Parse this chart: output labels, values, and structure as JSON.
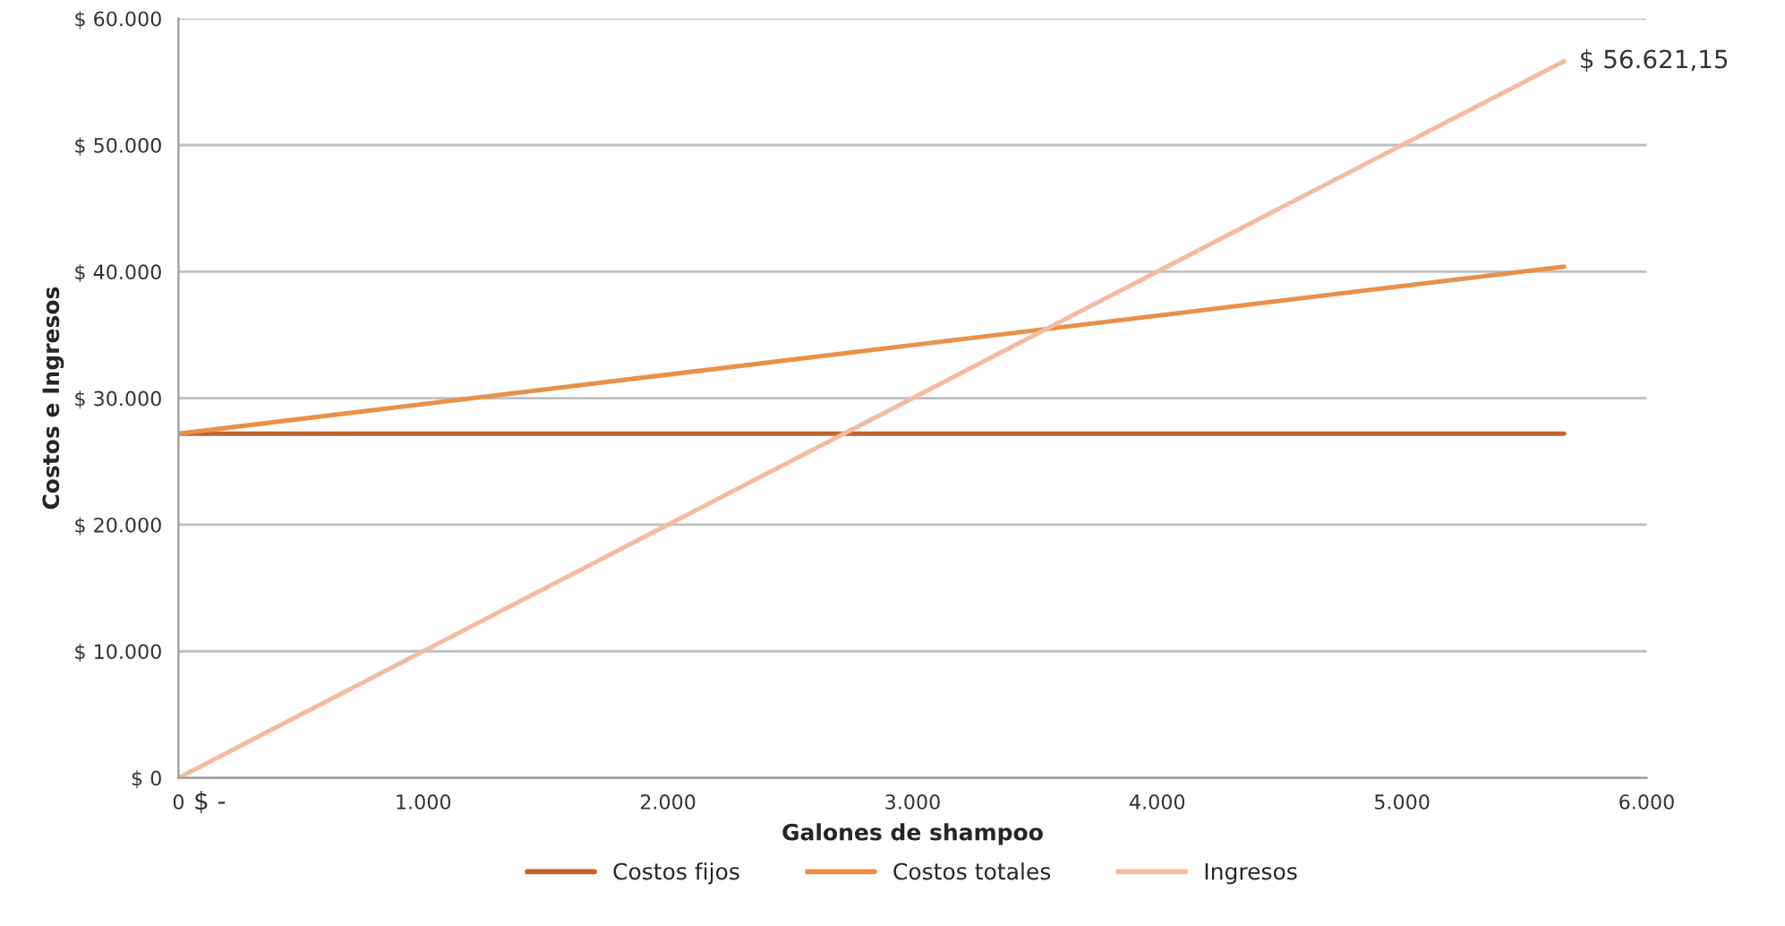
{
  "chart_data": {
    "type": "line",
    "xlabel": "Galones de shampoo",
    "ylabel": "Costos e Ingresos",
    "x": [
      0,
      5662
    ],
    "series": [
      {
        "name": "Costos fijos",
        "color": "#c0642c",
        "values": [
          27200,
          27200
        ]
      },
      {
        "name": "Costos totales",
        "color": "#e8914a",
        "values": [
          27200,
          40400
        ]
      },
      {
        "name": "Ingresos",
        "color": "#f4bba3",
        "values": [
          0,
          56621.15
        ],
        "value_labels": [
          "$ -",
          "$ 56.621,15"
        ]
      }
    ],
    "xlim": [
      0,
      6000
    ],
    "xticks": [
      0,
      {
        "value": 1000,
        "label": "1.000"
      },
      {
        "value": 2000,
        "label": "2.000"
      },
      {
        "value": 3000,
        "label": "3.000"
      },
      {
        "value": 4000,
        "label": "4.000"
      },
      {
        "value": 5000,
        "label": "5.000"
      },
      {
        "value": 6000,
        "label": "6.000"
      }
    ],
    "ylim": [
      0,
      60000
    ],
    "yticks": [
      {
        "value": 0,
        "label": "$ 0"
      },
      {
        "value": 10000,
        "label": "$ 10.000"
      },
      {
        "value": 20000,
        "label": "$ 20.000"
      },
      {
        "value": 30000,
        "label": "$ 30.000"
      },
      {
        "value": 40000,
        "label": "$ 40.000"
      },
      {
        "value": 50000,
        "label": "$ 50.000"
      },
      {
        "value": 60000,
        "label": "$ 60.000"
      }
    ],
    "grid": "y",
    "legend": "bottom",
    "marker": "none",
    "line_style": "solid"
  }
}
